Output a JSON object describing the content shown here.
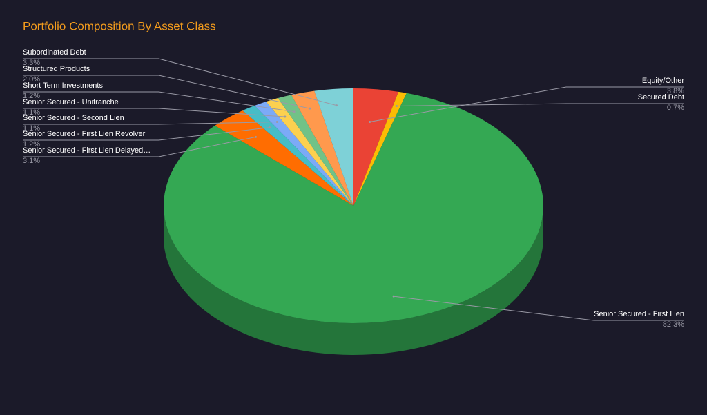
{
  "chart_data": {
    "type": "pie",
    "title": "Portfolio Composition By Asset Class",
    "categories": [
      "Equity/Other",
      "Secured Debt",
      "Senior Secured - First Lien",
      "Senior Secured - First Lien Delayed…",
      "Senior Secured - First Lien Revolver",
      "Senior Secured - Second Lien",
      "Senior Secured - Unitranche",
      "Short Term Investments",
      "Structured Products",
      "Subordinated Debt"
    ],
    "values": [
      3.8,
      0.7,
      82.3,
      3.1,
      1.2,
      1.1,
      1.1,
      1.2,
      2.0,
      3.3
    ],
    "value_labels": [
      "3.8%",
      "0.7%",
      "82.3%",
      "3.1%",
      "1.2%",
      "1.1%",
      "1.1%",
      "1.2%",
      "2.0%",
      "3.3%"
    ],
    "colors": [
      "#ea4335",
      "#fbbc04",
      "#34a853",
      "#ff6d01",
      "#46bdc6",
      "#7baaf7",
      "#fcd04f",
      "#71c287",
      "#ff994d",
      "#7ed1d7"
    ]
  }
}
